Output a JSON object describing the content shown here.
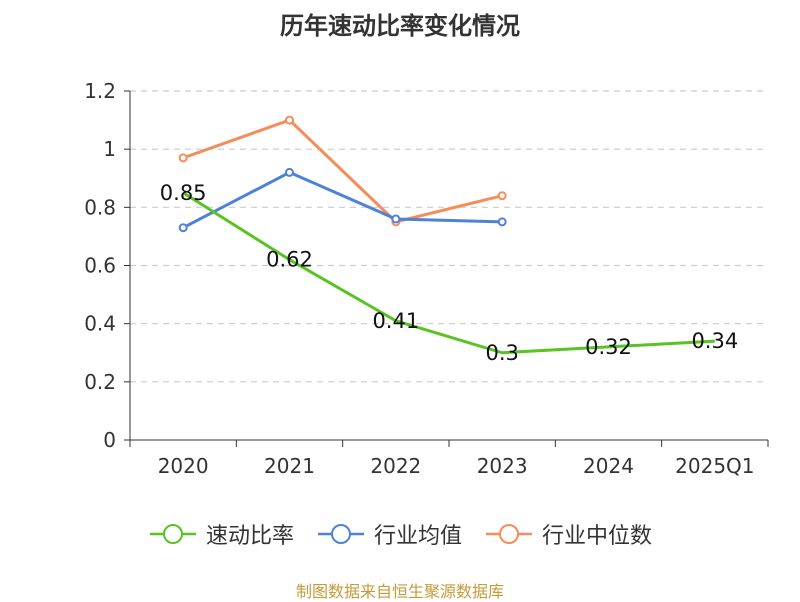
{
  "chart_data": {
    "type": "line",
    "title": "历年速动比率变化情况",
    "categories": [
      "2020",
      "2021",
      "2022",
      "2023",
      "2024",
      "2025Q1"
    ],
    "ylim": [
      0,
      1.2
    ],
    "yticks": [
      0,
      0.2,
      0.4,
      0.6,
      0.8,
      1,
      1.2
    ],
    "grid": true,
    "legend_position": "bottom",
    "series": [
      {
        "name": "速动比率",
        "color": "#58c322",
        "values": [
          0.85,
          0.62,
          0.41,
          0.3,
          0.32,
          0.34
        ],
        "labels": true
      },
      {
        "name": "行业均值",
        "color": "#4f81d9",
        "values": [
          0.73,
          0.92,
          0.76,
          0.75,
          null,
          null
        ],
        "labels": false
      },
      {
        "name": "行业中位数",
        "color": "#f68c5a",
        "values": [
          0.97,
          1.1,
          0.75,
          0.84,
          null,
          null
        ],
        "labels": false
      }
    ]
  },
  "source": "制图数据来自恒生聚源数据库"
}
